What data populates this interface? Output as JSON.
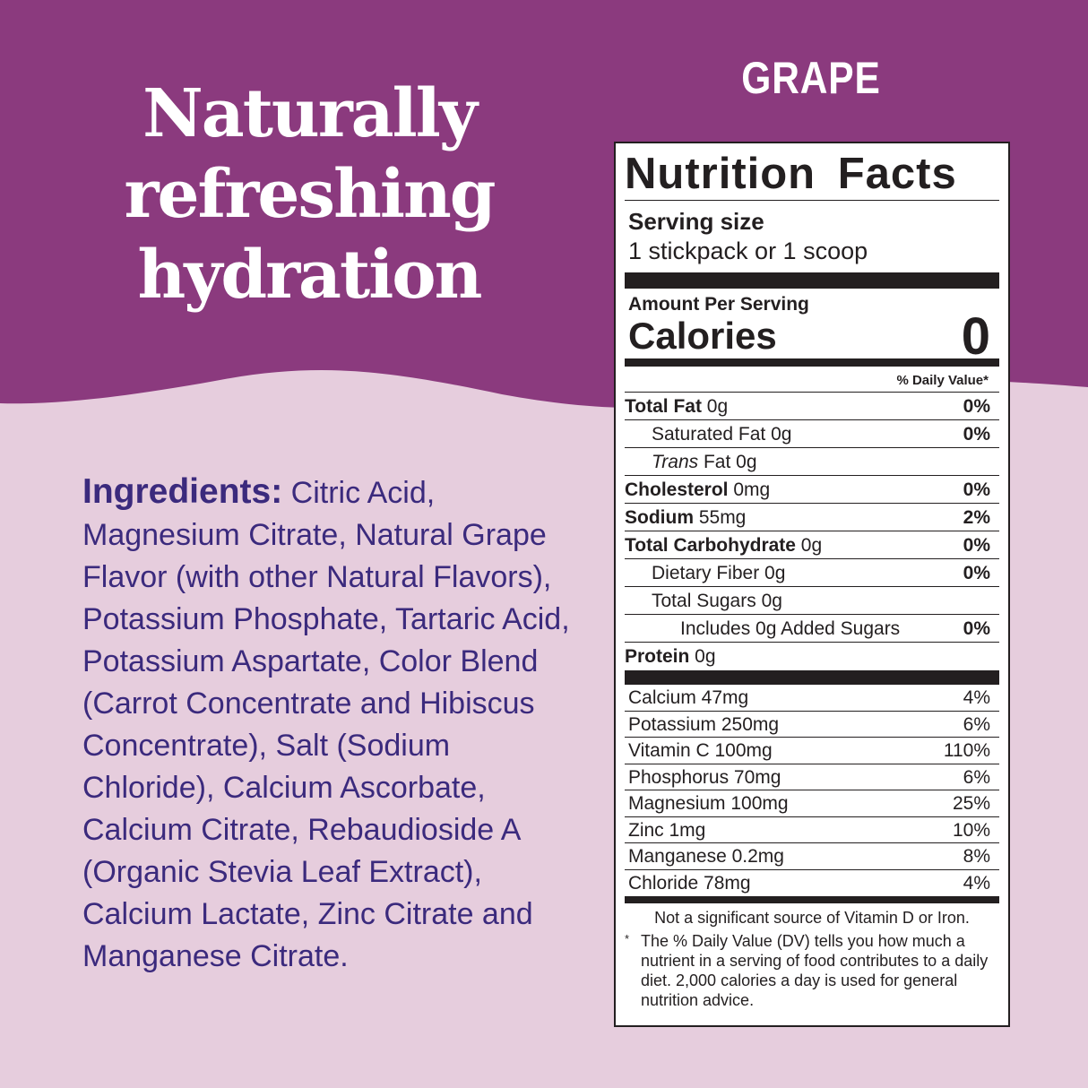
{
  "colors": {
    "purple": "#8b3a7e",
    "pink": "#e6cddd",
    "ingredient_text": "#3b2a7d"
  },
  "headline": [
    "Naturally",
    "refreshing",
    "hydration"
  ],
  "flavor": "GRAPE",
  "ingredients": {
    "label": "Ingredients:",
    "text": " Citric Acid, Magnesium Citrate, Natural Grape Flavor (with other Natural Flavors), Potassium Phosphate, Tartaric Acid, Potassium Aspartate, Color Blend (Carrot Concentrate and Hibiscus Concentrate), Salt (Sodium Chloride), Calcium Ascorbate, Calcium Citrate, Rebaudioside A (Organic Stevia Leaf Extract), Calcium Lactate, Zinc Citrate and Manganese Citrate."
  },
  "label": {
    "title": "Nutrition Facts",
    "serving_size_label": "Serving size",
    "serving_size": "1 stickpack or 1 scoop",
    "amount_per_serving": "Amount Per Serving",
    "calories_label": "Calories",
    "calories": "0",
    "dv_header": "% Daily Value*",
    "nutrients": [
      {
        "name": "Total Fat",
        "amount": " 0g",
        "dv": "0%"
      },
      {
        "name": "Saturated Fat",
        "amount": " 0g",
        "dv": "0%"
      },
      {
        "name": "Trans",
        "amount": " Fat 0g",
        "dv": ""
      },
      {
        "name": "Cholesterol",
        "amount": " 0mg",
        "dv": "0%"
      },
      {
        "name": "Sodium",
        "amount": " 55mg",
        "dv": "2%"
      },
      {
        "name": "Total Carbohydrate",
        "amount": " 0g",
        "dv": "0%"
      },
      {
        "name": "Dietary Fiber",
        "amount": " 0g",
        "dv": "0%"
      },
      {
        "name": "Total Sugars",
        "amount": " 0g",
        "dv": ""
      },
      {
        "name": "Includes 0g Added Sugars",
        "amount": "",
        "dv": "0%"
      },
      {
        "name": "Protein",
        "amount": " 0g",
        "dv": ""
      }
    ],
    "vitamins": [
      {
        "name": "Calcium 47mg",
        "dv": "4%"
      },
      {
        "name": "Potassium 250mg",
        "dv": "6%"
      },
      {
        "name": "Vitamin C 100mg",
        "dv": "110%"
      },
      {
        "name": "Phosphorus 70mg",
        "dv": "6%"
      },
      {
        "name": "Magnesium 100mg",
        "dv": "25%"
      },
      {
        "name": "Zinc 1mg",
        "dv": "10%"
      },
      {
        "name": "Manganese 0.2mg",
        "dv": "8%"
      },
      {
        "name": "Chloride 78mg",
        "dv": "4%"
      }
    ],
    "footnote1": "Not a significant source of Vitamin D or Iron.",
    "footnote_asterisk": "*",
    "footnote2": "The % Daily Value (DV) tells you how much a nutrient in a serving of food contributes to a daily diet. 2,000 calories a day is used for general nutrition advice."
  }
}
